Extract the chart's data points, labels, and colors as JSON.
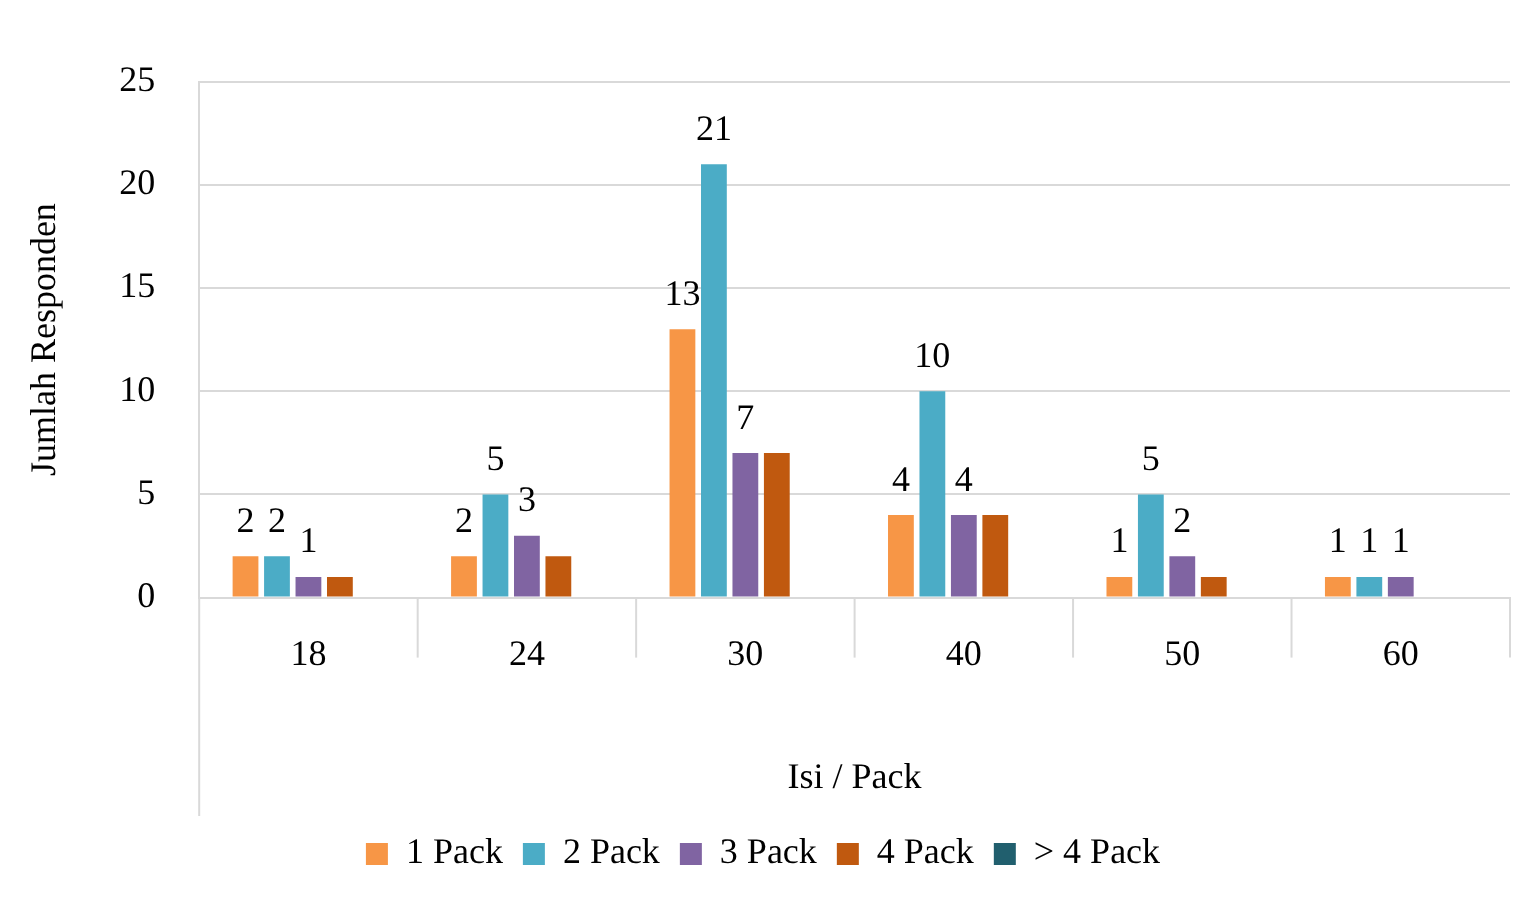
{
  "chart_data": {
    "type": "bar",
    "xlabel": "Isi / Pack",
    "ylabel": "Jumlah Responden",
    "categories": [
      "18",
      "24",
      "30",
      "40",
      "50",
      "60"
    ],
    "series": [
      {
        "name": "1 Pack",
        "color": "#f79646",
        "values": [
          2,
          2,
          13,
          4,
          1,
          1
        ],
        "value_labels": [
          "2",
          "2",
          "13",
          "4",
          "1",
          "1"
        ]
      },
      {
        "name": "2 Pack",
        "color": "#4bacc6",
        "values": [
          2,
          5,
          21,
          10,
          5,
          1
        ],
        "value_labels": [
          "2",
          "5",
          "21",
          "10",
          "5",
          "1"
        ]
      },
      {
        "name": "3 Pack",
        "color": "#8064a2",
        "values": [
          1,
          3,
          7,
          4,
          2,
          1
        ],
        "value_labels": [
          "1",
          "3",
          "7",
          "4",
          "2",
          "1"
        ]
      },
      {
        "name": "4 Pack",
        "color": "#c0590f",
        "values": [
          1,
          2,
          7,
          4,
          1,
          null
        ]
      },
      {
        "name": "> 4 Pack",
        "color": "#215f6e",
        "values": [
          null,
          null,
          null,
          null,
          null,
          null
        ]
      }
    ],
    "ylim": [
      0,
      25
    ],
    "yticks": [
      0,
      5,
      10,
      15,
      20,
      25
    ],
    "grid": "y",
    "legend": "bottom"
  }
}
